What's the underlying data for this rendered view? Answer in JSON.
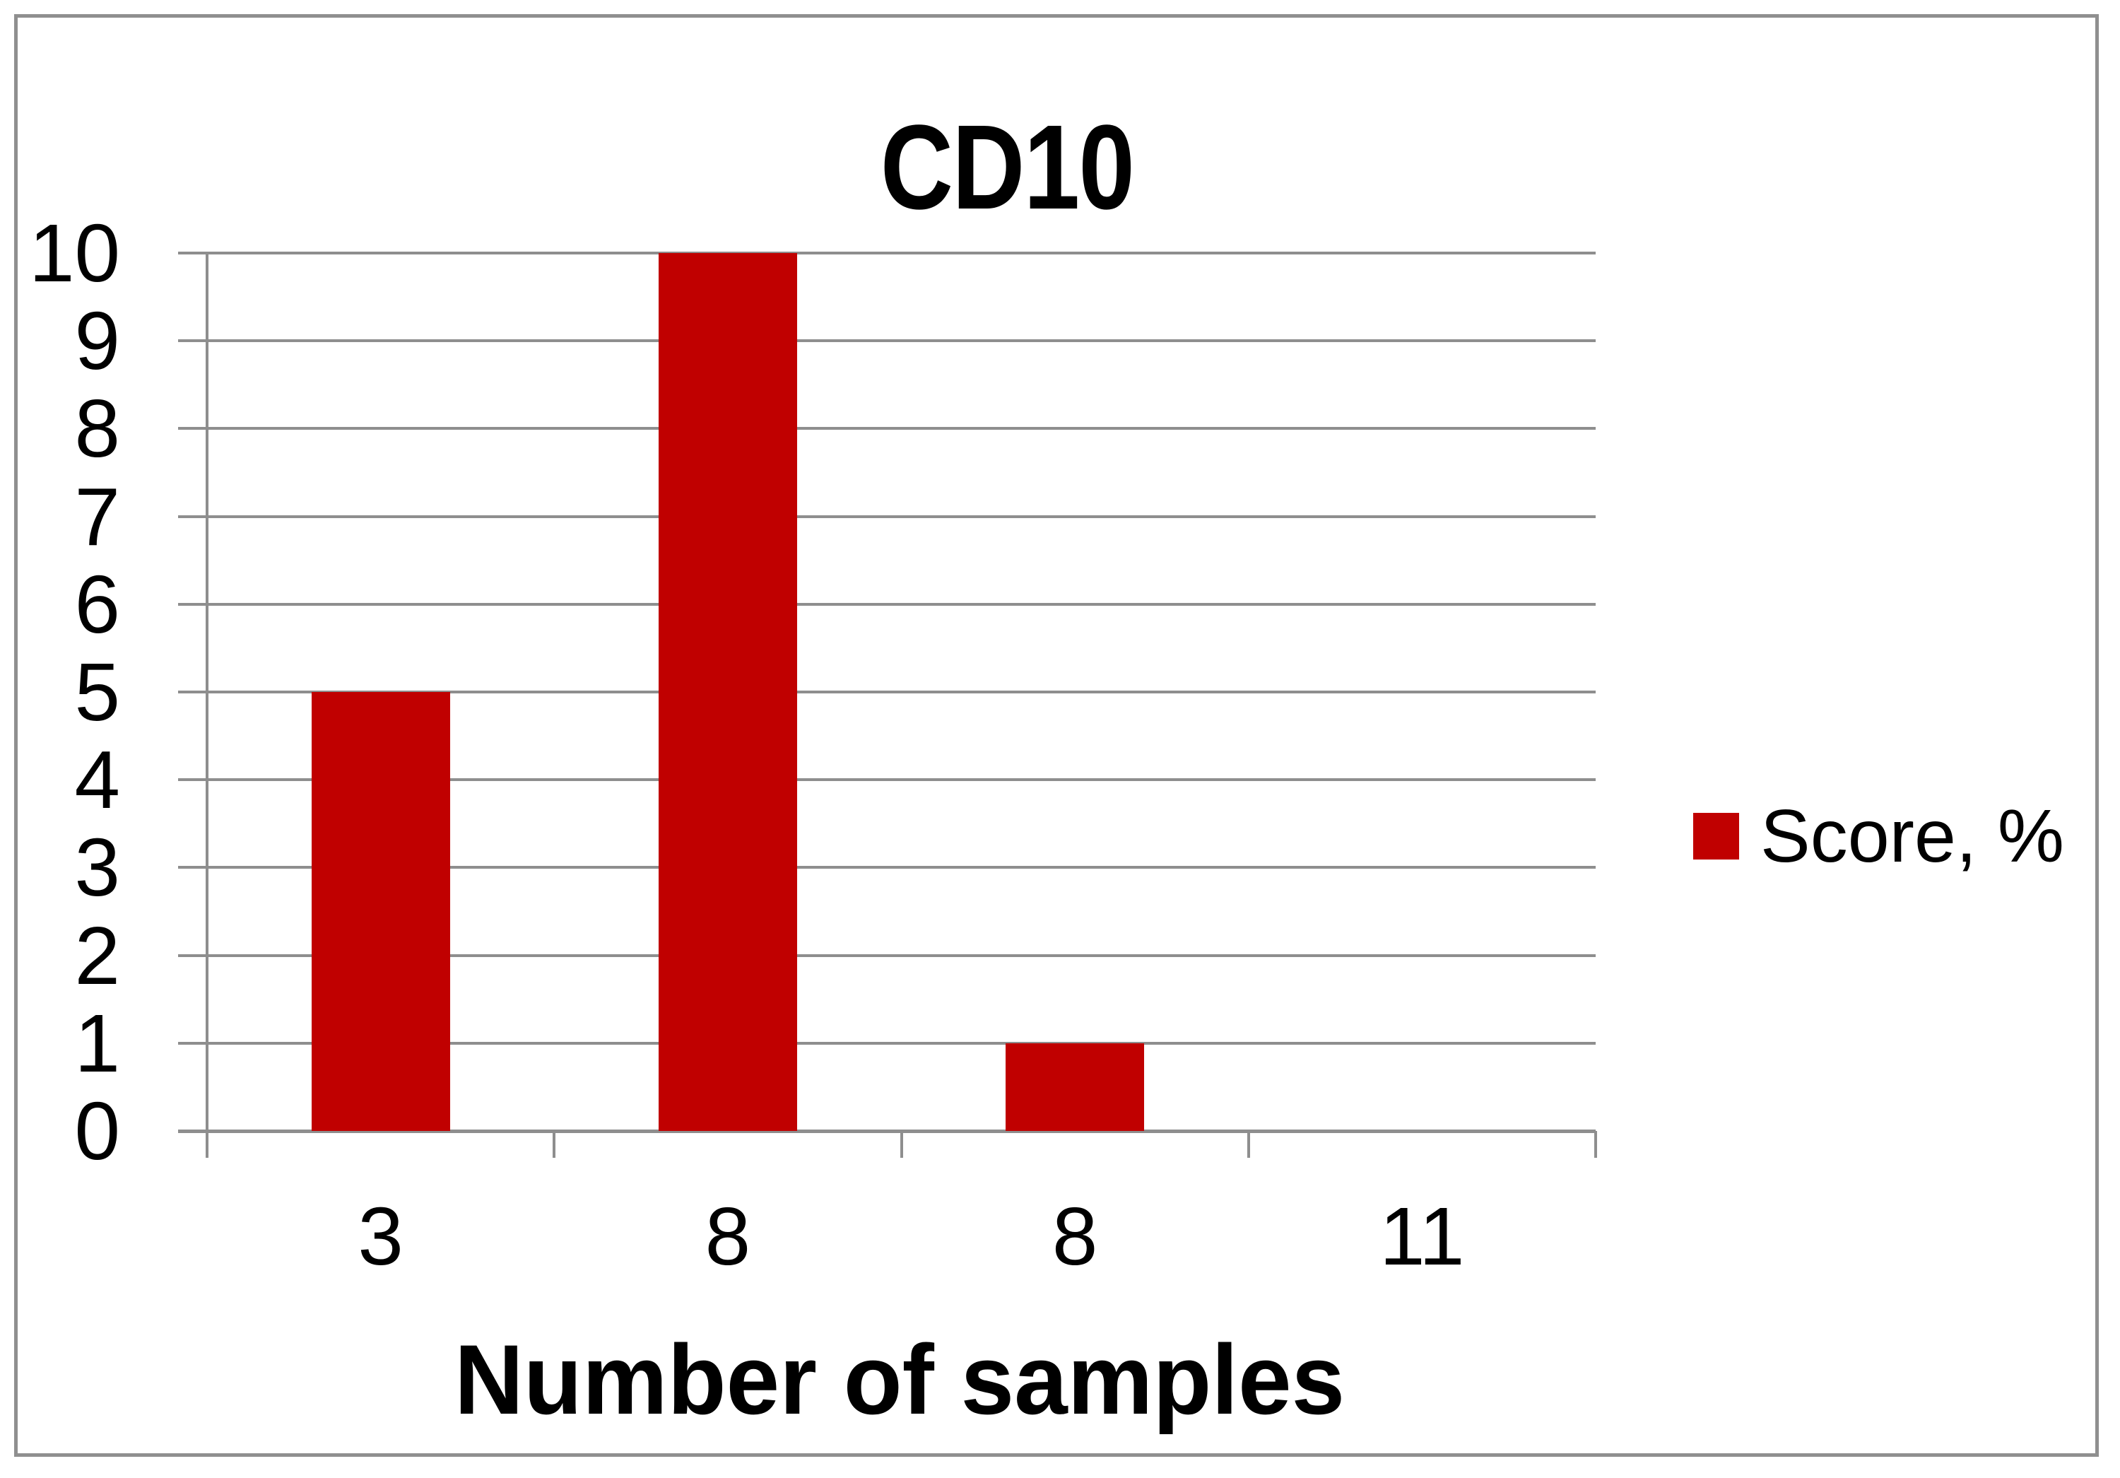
{
  "chart_data": {
    "type": "bar",
    "title": "CD10",
    "categories": [
      "3",
      "8",
      "8",
      "11"
    ],
    "series": [
      {
        "name": "Score, %",
        "values": [
          5,
          10,
          1,
          0
        ]
      }
    ],
    "xlabel": "Number of samples",
    "ylabel": "",
    "ylim": [
      0,
      10
    ],
    "y_ticks": [
      "0",
      "1",
      "2",
      "3",
      "4",
      "5",
      "6",
      "7",
      "8",
      "9",
      "10"
    ],
    "grid": "on",
    "bar_color": "#c00000",
    "gridline_color": "#8e8e8e",
    "legend": {
      "label": "Score, %",
      "position": "right",
      "swatch_color": "#c00000"
    }
  }
}
